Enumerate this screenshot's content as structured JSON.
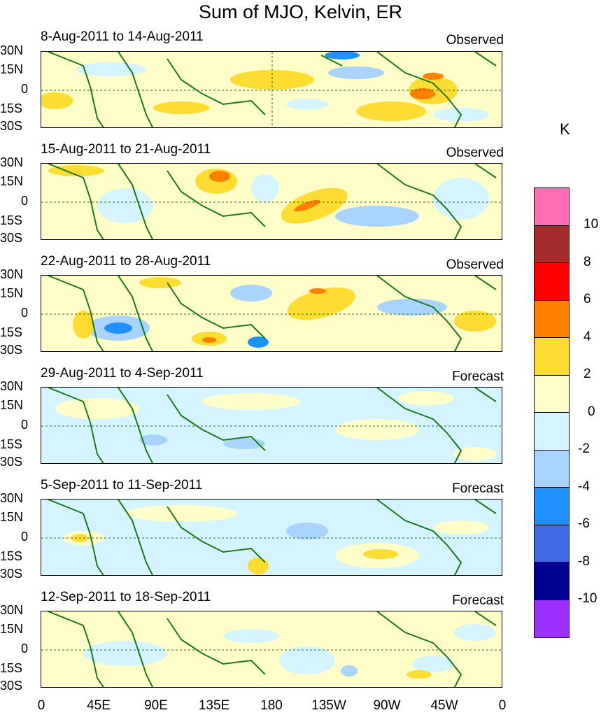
{
  "title": "Sum of MJO, Kelvin, ER",
  "panels": [
    {
      "date_range": "8-Aug-2011 to 14-Aug-2011",
      "type": "Observed"
    },
    {
      "date_range": "15-Aug-2011 to 21-Aug-2011",
      "type": "Observed"
    },
    {
      "date_range": "22-Aug-2011 to 28-Aug-2011",
      "type": "Observed"
    },
    {
      "date_range": "29-Aug-2011 to 4-Sep-2011",
      "type": "Forecast"
    },
    {
      "date_range": "5-Sep-2011 to 11-Sep-2011",
      "type": "Forecast"
    },
    {
      "date_range": "12-Sep-2011 to 18-Sep-2011",
      "type": "Forecast"
    }
  ],
  "lat_ticks": [
    "30N",
    "15N",
    "0",
    "15S",
    "30S"
  ],
  "lon_ticks": [
    "0",
    "45E",
    "90E",
    "135E",
    "180",
    "135W",
    "90W",
    "45W",
    "0"
  ],
  "colorbar": {
    "unit": "K",
    "labels": [
      "10",
      "8",
      "6",
      "4",
      "2",
      "0",
      "-2",
      "-4",
      "-6",
      "-8",
      "-10"
    ],
    "colors": [
      "#ff6eb4",
      "#a52a2a",
      "#ff0000",
      "#ff7f00",
      "#ffdc32",
      "#fffdc8",
      "#d4f5ff",
      "#a8d4ff",
      "#1e90ff",
      "#4169e1",
      "#000090",
      "#9b30ff"
    ]
  }
}
